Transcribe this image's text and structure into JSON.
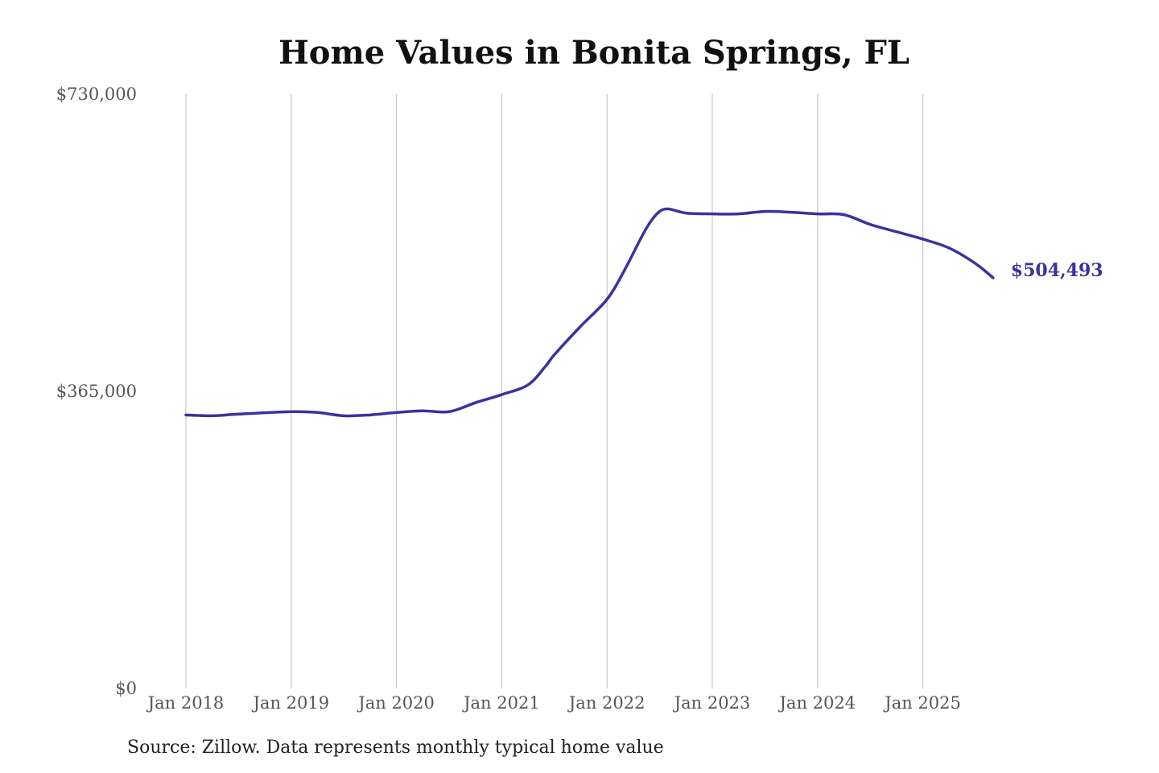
{
  "chart_data": {
    "type": "line",
    "title": "Home Values in Bonita Springs, FL",
    "source": "Source: Zillow. Data represents monthly typical home value",
    "xlabel": "",
    "ylabel": "",
    "ylim": [
      0,
      730000
    ],
    "y_ticks": [
      {
        "value": 730000,
        "label": "$730,000"
      },
      {
        "value": 365000,
        "label": "$365,000"
      },
      {
        "value": 0,
        "label": "$0"
      }
    ],
    "x_ticks": [
      {
        "date": "2018-01",
        "label": "Jan 2018"
      },
      {
        "date": "2019-01",
        "label": "Jan 2019"
      },
      {
        "date": "2020-01",
        "label": "Jan 2020"
      },
      {
        "date": "2021-01",
        "label": "Jan 2021"
      },
      {
        "date": "2022-01",
        "label": "Jan 2022"
      },
      {
        "date": "2023-01",
        "label": "Jan 2023"
      },
      {
        "date": "2024-01",
        "label": "Jan 2024"
      },
      {
        "date": "2025-01",
        "label": "Jan 2025"
      }
    ],
    "grid": "vertical",
    "line_color": "#3a329e",
    "end_label": "$504,493",
    "series": [
      {
        "points": [
          {
            "x": "2018-01",
            "y": 336000
          },
          {
            "x": "2018-04",
            "y": 335000
          },
          {
            "x": "2018-07",
            "y": 337000
          },
          {
            "x": "2019-01",
            "y": 340000
          },
          {
            "x": "2019-04",
            "y": 339000
          },
          {
            "x": "2019-07",
            "y": 335000
          },
          {
            "x": "2019-10",
            "y": 336000
          },
          {
            "x": "2020-01",
            "y": 339000
          },
          {
            "x": "2020-04",
            "y": 341000
          },
          {
            "x": "2020-07",
            "y": 340000
          },
          {
            "x": "2020-10",
            "y": 351000
          },
          {
            "x": "2021-01",
            "y": 361000
          },
          {
            "x": "2021-04",
            "y": 373000
          },
          {
            "x": "2021-06",
            "y": 396000
          },
          {
            "x": "2021-07",
            "y": 410000
          },
          {
            "x": "2021-10",
            "y": 445000
          },
          {
            "x": "2022-01",
            "y": 478000
          },
          {
            "x": "2022-03",
            "y": 514000
          },
          {
            "x": "2022-05",
            "y": 556000
          },
          {
            "x": "2022-06",
            "y": 574000
          },
          {
            "x": "2022-07",
            "y": 586000
          },
          {
            "x": "2022-08",
            "y": 589000
          },
          {
            "x": "2022-10",
            "y": 584000
          },
          {
            "x": "2023-01",
            "y": 583000
          },
          {
            "x": "2023-04",
            "y": 583000
          },
          {
            "x": "2023-07",
            "y": 586000
          },
          {
            "x": "2023-10",
            "y": 585000
          },
          {
            "x": "2024-01",
            "y": 583000
          },
          {
            "x": "2024-04",
            "y": 582000
          },
          {
            "x": "2024-07",
            "y": 570000
          },
          {
            "x": "2024-10",
            "y": 561000
          },
          {
            "x": "2025-01",
            "y": 552000
          },
          {
            "x": "2025-04",
            "y": 541000
          },
          {
            "x": "2025-07",
            "y": 522000
          },
          {
            "x": "2025-09",
            "y": 504493
          }
        ]
      }
    ]
  }
}
